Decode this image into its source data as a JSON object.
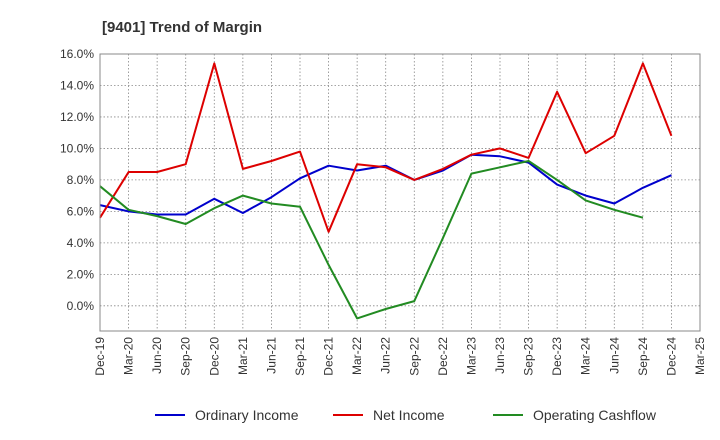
{
  "chart_data": {
    "type": "line",
    "title": "[9401]  Trend of Margin",
    "xlabel": "",
    "ylabel": "",
    "categories": [
      "Dec-19",
      "Mar-20",
      "Jun-20",
      "Sep-20",
      "Dec-20",
      "Mar-21",
      "Jun-21",
      "Sep-21",
      "Dec-21",
      "Mar-22",
      "Jun-22",
      "Sep-22",
      "Dec-22",
      "Mar-23",
      "Jun-23",
      "Sep-23",
      "Dec-23",
      "Mar-24",
      "Jun-24",
      "Sep-24",
      "Dec-24",
      "Mar-25"
    ],
    "ylim": [
      -1.6,
      16.0
    ],
    "yticks": [
      0,
      2,
      4,
      6,
      8,
      10,
      12,
      14,
      16
    ],
    "ytick_labels": [
      "0.0%",
      "2.0%",
      "4.0%",
      "6.0%",
      "8.0%",
      "10.0%",
      "12.0%",
      "14.0%",
      "16.0%"
    ],
    "grid": true,
    "legend_position": "bottom",
    "series": [
      {
        "name": "Ordinary Income",
        "color": "#0000cc",
        "values": [
          6.4,
          6.0,
          5.8,
          5.8,
          6.8,
          5.9,
          6.9,
          8.1,
          8.9,
          8.6,
          8.9,
          8.0,
          8.6,
          9.6,
          9.5,
          9.1,
          7.7,
          7.0,
          6.5,
          7.5,
          8.3,
          null
        ]
      },
      {
        "name": "Net Income",
        "color": "#dd0000",
        "values": [
          5.6,
          8.5,
          8.5,
          9.0,
          15.4,
          8.7,
          9.2,
          9.8,
          4.7,
          9.0,
          8.8,
          8.0,
          8.7,
          9.6,
          10.0,
          9.4,
          13.6,
          9.7,
          10.8,
          15.4,
          10.8,
          null
        ]
      },
      {
        "name": "Operating Cashflow",
        "color": "#228b22",
        "values": [
          7.6,
          6.1,
          5.7,
          5.2,
          6.2,
          7.0,
          6.5,
          6.3,
          2.6,
          -0.8,
          -0.2,
          0.3,
          4.3,
          8.4,
          8.8,
          9.2,
          8.0,
          6.7,
          6.1,
          5.6,
          null,
          null
        ]
      }
    ]
  }
}
